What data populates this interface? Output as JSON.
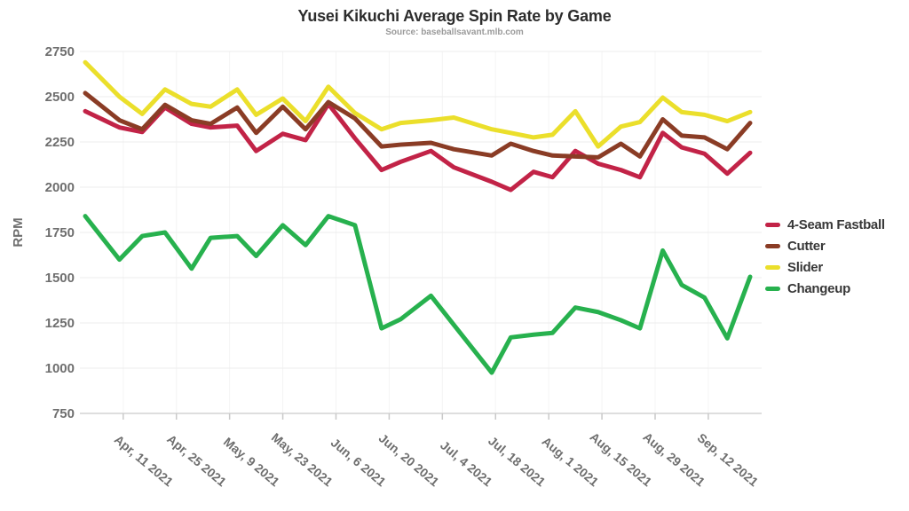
{
  "header": {
    "title": "Yusei Kikuchi Average Spin Rate by Game",
    "subtitle": "Source: baseballsavant.mlb.com"
  },
  "chart_data": {
    "type": "line",
    "title": "Yusei Kikuchi Average Spin Rate by Game",
    "subtitle": "Source: baseballsavant.mlb.com",
    "xlabel": "",
    "ylabel": "RPM",
    "ylim": [
      750,
      2750
    ],
    "yticks": [
      750,
      1000,
      1250,
      1500,
      1750,
      2000,
      2250,
      2500,
      2750
    ],
    "grid": true,
    "legend_position": "right",
    "x_tick_labels": [
      "Apr, 11 2021",
      "Apr, 25 2021",
      "May, 9 2021",
      "May, 23 2021",
      "Jun, 6 2021",
      "Jun, 20 2021",
      "Jul, 4 2021",
      "Jul, 18 2021",
      "Aug, 1 2021",
      "Aug, 15 2021",
      "Aug, 29 2021",
      "Sep, 12 2021"
    ],
    "x_tick_days": [
      10,
      24,
      38,
      52,
      66,
      80,
      94,
      108,
      122,
      136,
      150,
      164
    ],
    "x_days_since_apr1": [
      0,
      9,
      15,
      21,
      28,
      33,
      40,
      45,
      52,
      58,
      64,
      71,
      78,
      83,
      91,
      97,
      107,
      112,
      118,
      123,
      129,
      135,
      141,
      146,
      152,
      157,
      163,
      169,
      175
    ],
    "x_day_span": [
      0,
      175
    ],
    "series": [
      {
        "name": "4-Seam Fastball",
        "color": "#c22347",
        "values": [
          2420,
          2330,
          2305,
          2440,
          2350,
          2330,
          2340,
          2200,
          2295,
          2260,
          2460,
          2270,
          2095,
          2140,
          2200,
          2110,
          2030,
          1985,
          2085,
          2055,
          2200,
          2130,
          2095,
          2055,
          2300,
          2220,
          2185,
          2075,
          2190
        ]
      },
      {
        "name": "Cutter",
        "color": "#8a3c25",
        "values": [
          2520,
          2370,
          2320,
          2455,
          2370,
          2350,
          2440,
          2300,
          2445,
          2320,
          2470,
          2380,
          2225,
          2235,
          2245,
          2210,
          2175,
          2240,
          2200,
          2175,
          2170,
          2165,
          2240,
          2170,
          2375,
          2285,
          2275,
          2210,
          2355
        ]
      },
      {
        "name": "Slider",
        "color": "#ebdf2b",
        "values": [
          2690,
          2500,
          2405,
          2540,
          2460,
          2445,
          2540,
          2400,
          2490,
          2365,
          2555,
          2410,
          2320,
          2355,
          2370,
          2385,
          2320,
          2300,
          2275,
          2290,
          2420,
          2225,
          2335,
          2360,
          2495,
          2415,
          2400,
          2365,
          2415
        ]
      },
      {
        "name": "Changeup",
        "color": "#27b14e",
        "values": [
          1840,
          1600,
          1730,
          1750,
          1550,
          1720,
          1730,
          1620,
          1790,
          1680,
          1840,
          1790,
          1220,
          1270,
          1400,
          1240,
          975,
          1170,
          1185,
          1195,
          1335,
          1310,
          1265,
          1220,
          1650,
          1460,
          1390,
          1165,
          1505
        ]
      }
    ],
    "style": {
      "line_width": 5,
      "grid_color": "#ededed",
      "vgrid_color": "#f4f4f4",
      "axis_color": "#d4d4d4",
      "tick_color": "#c9c9c9"
    }
  }
}
